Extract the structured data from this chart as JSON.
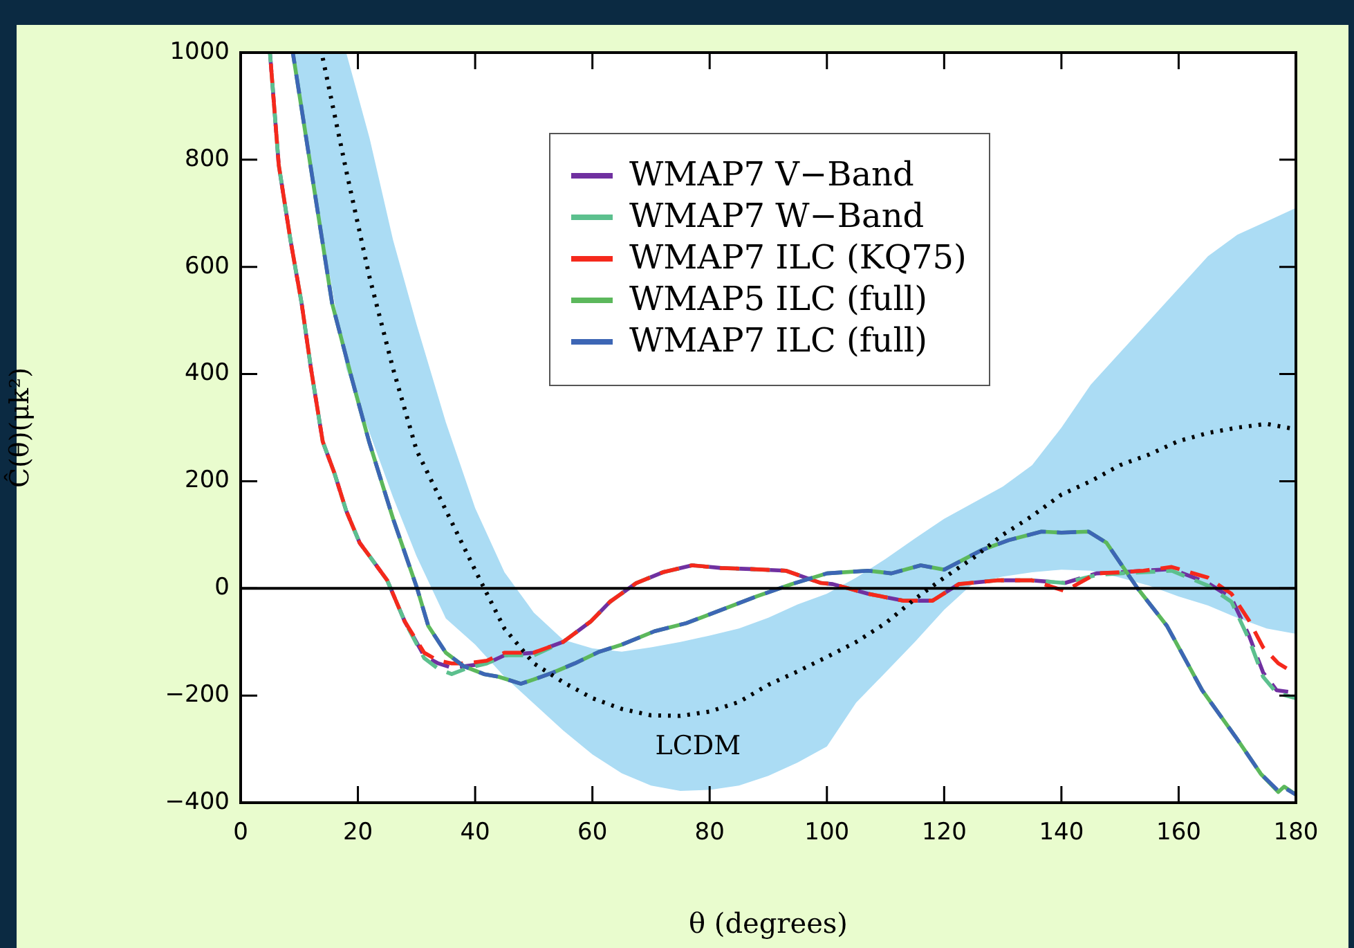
{
  "chart_data": {
    "type": "line",
    "xlabel": "θ (degrees)",
    "ylabel": "Ĉ(θ)(μk²)",
    "xlim": [
      0,
      180
    ],
    "xticks": [
      0,
      20,
      40,
      60,
      80,
      100,
      120,
      140,
      160,
      180
    ],
    "ylim": [
      -400,
      1000
    ],
    "yticks": [
      -400,
      -200,
      0,
      200,
      400,
      600,
      800,
      1000
    ],
    "grid": false,
    "legend": "top",
    "marker": "none",
    "ref_lines": [
      {
        "axis": "y",
        "value": 0,
        "color": "#000000",
        "line_style": "solid"
      }
    ],
    "annotations": [
      {
        "text": "LCDM",
        "x": 78,
        "y": -235
      }
    ],
    "series": [
      {
        "name": "WMAP7 V−Band",
        "color": "#7030a0",
        "line_style": "dashed",
        "x": [
          5,
          6.5,
          8.5,
          10.4,
          12,
          14,
          16,
          18,
          20.3,
          22,
          25,
          28,
          31.3,
          33.7,
          36,
          38.4,
          42,
          45,
          50,
          55,
          59.7,
          63,
          67.5,
          72,
          77,
          82,
          87,
          93,
          99,
          101,
          107,
          113,
          118,
          122.5,
          129,
          135,
          140.6,
          146,
          150,
          154,
          158.8,
          165,
          169,
          172,
          174.4,
          176.7,
          180
        ],
        "values": [
          1000,
          790,
          650,
          532,
          410,
          274,
          215,
          145,
          85,
          60,
          15,
          -62,
          -126,
          -140,
          -148,
          -145,
          -140,
          -125,
          -120,
          -100,
          -62,
          -25,
          10,
          30,
          43,
          38,
          36,
          33,
          10,
          8,
          -10,
          -23,
          -23,
          8,
          15,
          15,
          10,
          28,
          30,
          33,
          36,
          10,
          -18,
          -88,
          -157,
          -190,
          -195
        ]
      },
      {
        "name": "WMAP7 W−Band",
        "color": "#5cc08e",
        "line_style": "dashed",
        "x": [
          5,
          6.5,
          8.5,
          10.4,
          12,
          14,
          16,
          18,
          20.3,
          22,
          25,
          28,
          31.3,
          33.7,
          36,
          38.4,
          42,
          45,
          50,
          55,
          59.7,
          63,
          67.5,
          72,
          77,
          82,
          87,
          93,
          99,
          101,
          107,
          113,
          118,
          122.5,
          129,
          135,
          140.6,
          146,
          150,
          154,
          158.8,
          165,
          169,
          172,
          174.4,
          176.7,
          180
        ],
        "values": [
          1000,
          790,
          650,
          532,
          410,
          274,
          215,
          145,
          85,
          60,
          15,
          -62,
          -130,
          -150,
          -160,
          -150,
          -140,
          -125,
          -125,
          -100,
          -62,
          -25,
          10,
          30,
          43,
          38,
          36,
          33,
          10,
          8,
          -10,
          -23,
          -23,
          8,
          15,
          15,
          10,
          25,
          28,
          30,
          33,
          5,
          -25,
          -95,
          -165,
          -195,
          -205
        ]
      },
      {
        "name": "WMAP7 ILC (KQ75)",
        "color": "#f5291c",
        "line_style": "dashed",
        "x": [
          5,
          6.5,
          8.5,
          10.4,
          12,
          14,
          16,
          18,
          20.3,
          22,
          25,
          28,
          31.3,
          33.7,
          36,
          38.4,
          42,
          45,
          50,
          55,
          59.7,
          63,
          67.5,
          72,
          77,
          82,
          87,
          93,
          99,
          101,
          107,
          113,
          118,
          122.5,
          129,
          135,
          140.6,
          146,
          150,
          154,
          158.8,
          165,
          169,
          172,
          174.4,
          177,
          180
        ],
        "values": [
          1000,
          790,
          650,
          532,
          410,
          274,
          215,
          145,
          85,
          60,
          15,
          -62,
          -120,
          -135,
          -140,
          -140,
          -135,
          -120,
          -120,
          -100,
          -62,
          -25,
          10,
          30,
          43,
          38,
          36,
          33,
          10,
          8,
          -10,
          -23,
          -23,
          8,
          15,
          15,
          -5,
          28,
          30,
          33,
          40,
          20,
          -10,
          -60,
          -110,
          -140,
          -160
        ]
      },
      {
        "name": "WMAP5 ILC (full)",
        "color": "#5cb85c",
        "line_style": "solid",
        "x": [
          8.9,
          12,
          15.6,
          19,
          21.9,
          26,
          30.1,
          32,
          35,
          38,
          41.5,
          44,
          47.8,
          50,
          53.3,
          57,
          61,
          65,
          70.6,
          76,
          83,
          88,
          94,
          100,
          107,
          111,
          116,
          120,
          126.5,
          131,
          136.6,
          140,
          144.6,
          147.7,
          153,
          158,
          164,
          169.7,
          174,
          177,
          178,
          180
        ],
        "values": [
          1000,
          783,
          532,
          390,
          274,
          130,
          0,
          -70,
          -120,
          -145,
          -160,
          -165,
          -178,
          -170,
          -157,
          -140,
          -119,
          -105,
          -80,
          -65,
          -36,
          -15,
          8,
          28,
          33,
          28,
          43,
          35,
          72,
          90,
          106,
          104,
          106,
          85,
          0,
          -70,
          -190,
          -277,
          -346,
          -380,
          -370,
          -385
        ]
      },
      {
        "name": "WMAP7 ILC (full)",
        "color": "#3d66b5",
        "line_style": "dashed",
        "x": [
          8.9,
          12,
          15.6,
          19,
          21.9,
          26,
          30.1,
          32,
          35,
          38,
          41.5,
          44,
          47.8,
          50,
          53.3,
          57,
          61,
          65,
          70.6,
          76,
          83,
          88,
          94,
          100,
          107,
          111,
          116,
          120,
          126.5,
          131,
          136.6,
          140,
          144.6,
          147.7,
          153,
          158,
          164,
          169.7,
          174,
          177,
          178,
          180
        ],
        "values": [
          1000,
          783,
          532,
          390,
          274,
          130,
          0,
          -70,
          -120,
          -145,
          -160,
          -165,
          -178,
          -170,
          -157,
          -140,
          -119,
          -105,
          -80,
          -65,
          -36,
          -15,
          8,
          28,
          33,
          28,
          43,
          35,
          72,
          90,
          106,
          104,
          106,
          85,
          0,
          -70,
          -190,
          -277,
          -346,
          -378,
          -372,
          -385
        ]
      },
      {
        "color": "#000000",
        "line_style": "dotted",
        "x": [
          9,
          14,
          18,
          22,
          26,
          30,
          35,
          40,
          45,
          50,
          55,
          60,
          65,
          70,
          75,
          80,
          85,
          90,
          95,
          100,
          105,
          110,
          115,
          120,
          125,
          130,
          135,
          140,
          145,
          150,
          155,
          160,
          165,
          170,
          175,
          180
        ],
        "values": [
          null,
          990,
          780,
          580,
          410,
          258,
          146,
          34,
          -75,
          -140,
          -175,
          -205,
          -225,
          -237,
          -238,
          -230,
          -212,
          -180,
          -155,
          -128,
          -100,
          -65,
          -20,
          20,
          57,
          100,
          135,
          175,
          200,
          230,
          250,
          275,
          290,
          300,
          307,
          297
        ],
        "upper": [
          1000,
          1000,
          1000,
          840,
          650,
          493,
          310,
          150,
          30,
          -45,
          -96,
          -112,
          -118,
          -110,
          -100,
          -88,
          -75,
          -55,
          -30,
          -10,
          20,
          55,
          93,
          130,
          160,
          190,
          230,
          300,
          380,
          440,
          500,
          560,
          620,
          660,
          685,
          710
        ],
        "lower": [
          1000,
          660,
          410,
          290,
          170,
          60,
          -56,
          -105,
          -165,
          -215,
          -265,
          -310,
          -345,
          -368,
          -378,
          -376,
          -368,
          -350,
          -325,
          -295,
          -213,
          -157,
          -100,
          -40,
          10,
          22,
          30,
          35,
          33,
          20,
          5,
          -15,
          -32,
          -55,
          -75,
          -85
        ]
      }
    ]
  }
}
